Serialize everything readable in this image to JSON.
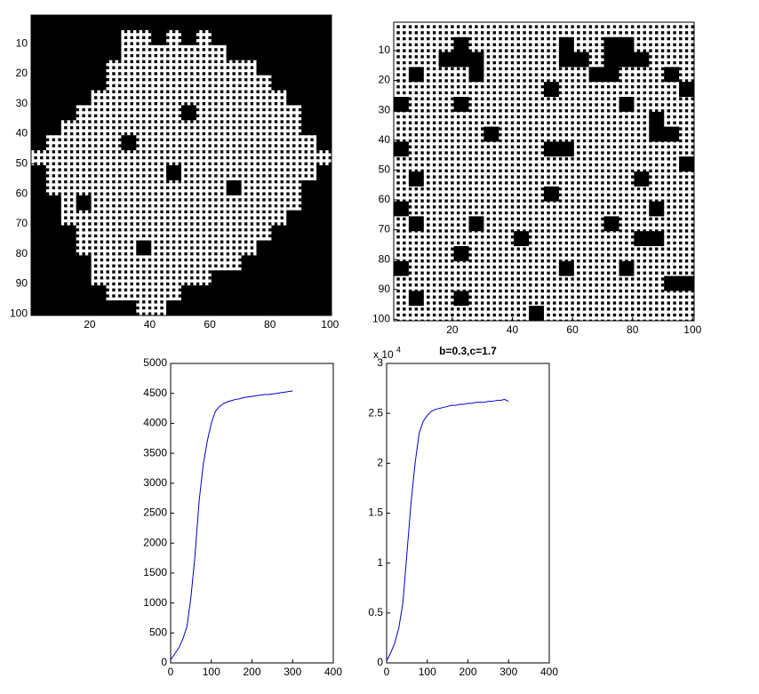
{
  "chart_data": [
    {
      "type": "image",
      "colors": [
        "#000000",
        "#ffffff"
      ],
      "xlim": [
        0.5,
        100.5
      ],
      "ylim": [
        0.5,
        100.5
      ],
      "xticks": [
        20,
        40,
        60,
        80,
        100
      ],
      "yticks": [
        10,
        20,
        30,
        40,
        50,
        60,
        70,
        80,
        90,
        100
      ],
      "values": [
        [
          0,
          0,
          0,
          0,
          0,
          0,
          0,
          0,
          0,
          0,
          0,
          0,
          0,
          0,
          0,
          0,
          0,
          0,
          0,
          0
        ],
        [
          0,
          0,
          0,
          0,
          0,
          0,
          1,
          1,
          0,
          1,
          0,
          1,
          0,
          0,
          0,
          0,
          0,
          0,
          0,
          0
        ],
        [
          0,
          0,
          0,
          0,
          0,
          0,
          1,
          1,
          1,
          1,
          1,
          1,
          1,
          0,
          0,
          0,
          0,
          0,
          0,
          0
        ],
        [
          0,
          0,
          0,
          0,
          0,
          1,
          1,
          1,
          1,
          1,
          1,
          1,
          1,
          1,
          1,
          0,
          0,
          0,
          0,
          0
        ],
        [
          0,
          0,
          0,
          0,
          0,
          1,
          1,
          1,
          1,
          1,
          1,
          1,
          1,
          1,
          1,
          1,
          0,
          0,
          0,
          0
        ],
        [
          0,
          0,
          0,
          0,
          1,
          1,
          1,
          1,
          1,
          1,
          1,
          1,
          1,
          1,
          1,
          1,
          1,
          0,
          0,
          0
        ],
        [
          0,
          0,
          0,
          1,
          1,
          1,
          1,
          1,
          1,
          1,
          0,
          1,
          1,
          1,
          1,
          1,
          1,
          1,
          0,
          0
        ],
        [
          0,
          0,
          1,
          1,
          1,
          1,
          1,
          1,
          1,
          1,
          1,
          1,
          1,
          1,
          1,
          1,
          1,
          1,
          0,
          0
        ],
        [
          0,
          1,
          1,
          1,
          1,
          1,
          0,
          1,
          1,
          1,
          1,
          1,
          1,
          1,
          1,
          1,
          1,
          1,
          1,
          0
        ],
        [
          1,
          1,
          1,
          1,
          1,
          1,
          1,
          1,
          1,
          1,
          1,
          1,
          1,
          1,
          1,
          1,
          1,
          1,
          1,
          1
        ],
        [
          0,
          1,
          1,
          1,
          1,
          1,
          1,
          1,
          1,
          0,
          1,
          1,
          1,
          1,
          1,
          1,
          1,
          1,
          1,
          0
        ],
        [
          0,
          1,
          1,
          1,
          1,
          1,
          1,
          1,
          1,
          1,
          1,
          1,
          1,
          0,
          1,
          1,
          1,
          1,
          0,
          0
        ],
        [
          0,
          0,
          1,
          0,
          1,
          1,
          1,
          1,
          1,
          1,
          1,
          1,
          1,
          1,
          1,
          1,
          1,
          1,
          0,
          0
        ],
        [
          0,
          0,
          1,
          1,
          1,
          1,
          1,
          1,
          1,
          1,
          1,
          1,
          1,
          1,
          1,
          1,
          1,
          0,
          0,
          0
        ],
        [
          0,
          0,
          0,
          1,
          1,
          1,
          1,
          1,
          1,
          1,
          1,
          1,
          1,
          1,
          1,
          1,
          0,
          0,
          0,
          0
        ],
        [
          0,
          0,
          0,
          1,
          1,
          1,
          1,
          0,
          1,
          1,
          1,
          1,
          1,
          1,
          1,
          0,
          0,
          0,
          0,
          0
        ],
        [
          0,
          0,
          0,
          0,
          1,
          1,
          1,
          1,
          1,
          1,
          1,
          1,
          1,
          1,
          0,
          0,
          0,
          0,
          0,
          0
        ],
        [
          0,
          0,
          0,
          0,
          1,
          1,
          1,
          1,
          1,
          1,
          1,
          1,
          0,
          0,
          0,
          0,
          0,
          0,
          0,
          0
        ],
        [
          0,
          0,
          0,
          0,
          0,
          1,
          1,
          1,
          1,
          1,
          0,
          0,
          0,
          0,
          0,
          0,
          0,
          0,
          0,
          0
        ],
        [
          0,
          0,
          0,
          0,
          0,
          0,
          0,
          1,
          1,
          0,
          0,
          0,
          0,
          0,
          0,
          0,
          0,
          0,
          0,
          0
        ]
      ]
    },
    {
      "type": "image",
      "colors": [
        "#000000",
        "#ffffff"
      ],
      "xlim": [
        0.5,
        100.5
      ],
      "ylim": [
        0.5,
        100.5
      ],
      "xticks": [
        20,
        40,
        60,
        80,
        100
      ],
      "yticks": [
        10,
        20,
        30,
        40,
        50,
        60,
        70,
        80,
        90,
        100
      ],
      "values": [
        [
          1,
          1,
          1,
          1,
          1,
          1,
          1,
          1,
          1,
          1,
          1,
          1,
          1,
          1,
          1,
          1,
          1,
          1,
          1,
          1
        ],
        [
          1,
          1,
          1,
          1,
          0,
          1,
          1,
          1,
          1,
          1,
          1,
          0,
          1,
          1,
          0,
          0,
          1,
          1,
          1,
          1
        ],
        [
          1,
          1,
          1,
          0,
          0,
          0,
          1,
          1,
          1,
          1,
          1,
          0,
          0,
          1,
          0,
          0,
          0,
          1,
          1,
          1
        ],
        [
          1,
          0,
          1,
          1,
          1,
          0,
          1,
          1,
          1,
          1,
          1,
          1,
          1,
          0,
          0,
          1,
          1,
          1,
          0,
          1
        ],
        [
          1,
          1,
          1,
          1,
          1,
          1,
          1,
          1,
          1,
          1,
          0,
          1,
          1,
          1,
          1,
          1,
          1,
          1,
          1,
          0
        ],
        [
          0,
          1,
          1,
          1,
          0,
          1,
          1,
          1,
          1,
          1,
          1,
          1,
          1,
          1,
          1,
          0,
          1,
          1,
          1,
          1
        ],
        [
          1,
          1,
          1,
          1,
          1,
          1,
          1,
          1,
          1,
          1,
          1,
          1,
          1,
          1,
          1,
          1,
          1,
          0,
          1,
          1
        ],
        [
          1,
          1,
          1,
          1,
          1,
          1,
          0,
          1,
          1,
          1,
          1,
          1,
          1,
          1,
          1,
          1,
          1,
          0,
          0,
          1
        ],
        [
          0,
          1,
          1,
          1,
          1,
          1,
          1,
          1,
          1,
          1,
          0,
          0,
          1,
          1,
          1,
          1,
          1,
          1,
          1,
          1
        ],
        [
          1,
          1,
          1,
          1,
          1,
          1,
          1,
          1,
          1,
          1,
          1,
          1,
          1,
          1,
          1,
          1,
          1,
          1,
          1,
          0
        ],
        [
          1,
          0,
          1,
          1,
          1,
          1,
          1,
          1,
          1,
          1,
          1,
          1,
          1,
          1,
          1,
          1,
          0,
          1,
          1,
          1
        ],
        [
          1,
          1,
          1,
          1,
          1,
          1,
          1,
          1,
          1,
          1,
          0,
          1,
          1,
          1,
          1,
          1,
          1,
          1,
          1,
          1
        ],
        [
          0,
          1,
          1,
          1,
          1,
          1,
          1,
          1,
          1,
          1,
          1,
          1,
          1,
          1,
          1,
          1,
          1,
          0,
          1,
          1
        ],
        [
          1,
          0,
          1,
          1,
          1,
          0,
          1,
          1,
          1,
          1,
          1,
          1,
          1,
          1,
          0,
          1,
          1,
          1,
          1,
          1
        ],
        [
          1,
          1,
          1,
          1,
          1,
          1,
          1,
          1,
          0,
          1,
          1,
          1,
          1,
          1,
          1,
          1,
          0,
          0,
          1,
          1
        ],
        [
          1,
          1,
          1,
          1,
          0,
          1,
          1,
          1,
          1,
          1,
          1,
          1,
          1,
          1,
          1,
          1,
          1,
          1,
          1,
          1
        ],
        [
          0,
          1,
          1,
          1,
          1,
          1,
          1,
          1,
          1,
          1,
          1,
          0,
          1,
          1,
          1,
          0,
          1,
          1,
          1,
          1
        ],
        [
          1,
          1,
          1,
          1,
          1,
          1,
          1,
          1,
          1,
          1,
          1,
          1,
          1,
          1,
          1,
          1,
          1,
          1,
          0,
          0
        ],
        [
          1,
          0,
          1,
          1,
          0,
          1,
          1,
          1,
          1,
          1,
          1,
          1,
          1,
          1,
          1,
          1,
          1,
          1,
          1,
          1
        ],
        [
          1,
          1,
          1,
          1,
          1,
          1,
          1,
          1,
          1,
          0,
          1,
          1,
          1,
          1,
          1,
          1,
          1,
          1,
          1,
          1
        ]
      ]
    },
    {
      "type": "line",
      "color": "#0000cc",
      "xlim": [
        0,
        400
      ],
      "ylim": [
        0,
        5000
      ],
      "xticks": [
        0,
        100,
        200,
        300,
        400
      ],
      "yticks": [
        0,
        500,
        1000,
        1500,
        2000,
        2500,
        3000,
        3500,
        4000,
        4500,
        5000
      ],
      "x": [
        0,
        10,
        20,
        30,
        40,
        50,
        60,
        70,
        80,
        90,
        100,
        110,
        120,
        130,
        140,
        150,
        160,
        170,
        180,
        190,
        200,
        210,
        220,
        230,
        240,
        250,
        260,
        270,
        280,
        290,
        300
      ],
      "values": [
        50,
        150,
        250,
        400,
        600,
        1100,
        1800,
        2700,
        3300,
        3700,
        4000,
        4200,
        4280,
        4330,
        4360,
        4380,
        4400,
        4410,
        4430,
        4440,
        4450,
        4460,
        4470,
        4480,
        4480,
        4490,
        4500,
        4510,
        4520,
        4530,
        4540
      ]
    },
    {
      "type": "line",
      "color": "#0000cc",
      "title": "b=0.3,c=1.7",
      "exponent_base": "x 10",
      "exponent": "4",
      "xlim": [
        0,
        400
      ],
      "ylim": [
        0,
        3
      ],
      "xticks": [
        0,
        100,
        200,
        300,
        400
      ],
      "yticks": [
        0,
        0.5,
        1,
        1.5,
        2,
        2.5,
        3
      ],
      "x": [
        0,
        10,
        20,
        30,
        40,
        50,
        60,
        70,
        80,
        90,
        100,
        110,
        120,
        130,
        140,
        150,
        160,
        170,
        180,
        190,
        200,
        210,
        220,
        230,
        240,
        250,
        260,
        270,
        280,
        290,
        300
      ],
      "values": [
        0.02,
        0.1,
        0.2,
        0.35,
        0.6,
        1.1,
        1.6,
        2.0,
        2.3,
        2.42,
        2.48,
        2.52,
        2.54,
        2.55,
        2.56,
        2.57,
        2.58,
        2.58,
        2.59,
        2.59,
        2.6,
        2.6,
        2.61,
        2.61,
        2.61,
        2.62,
        2.62,
        2.63,
        2.63,
        2.64,
        2.62
      ]
    }
  ]
}
